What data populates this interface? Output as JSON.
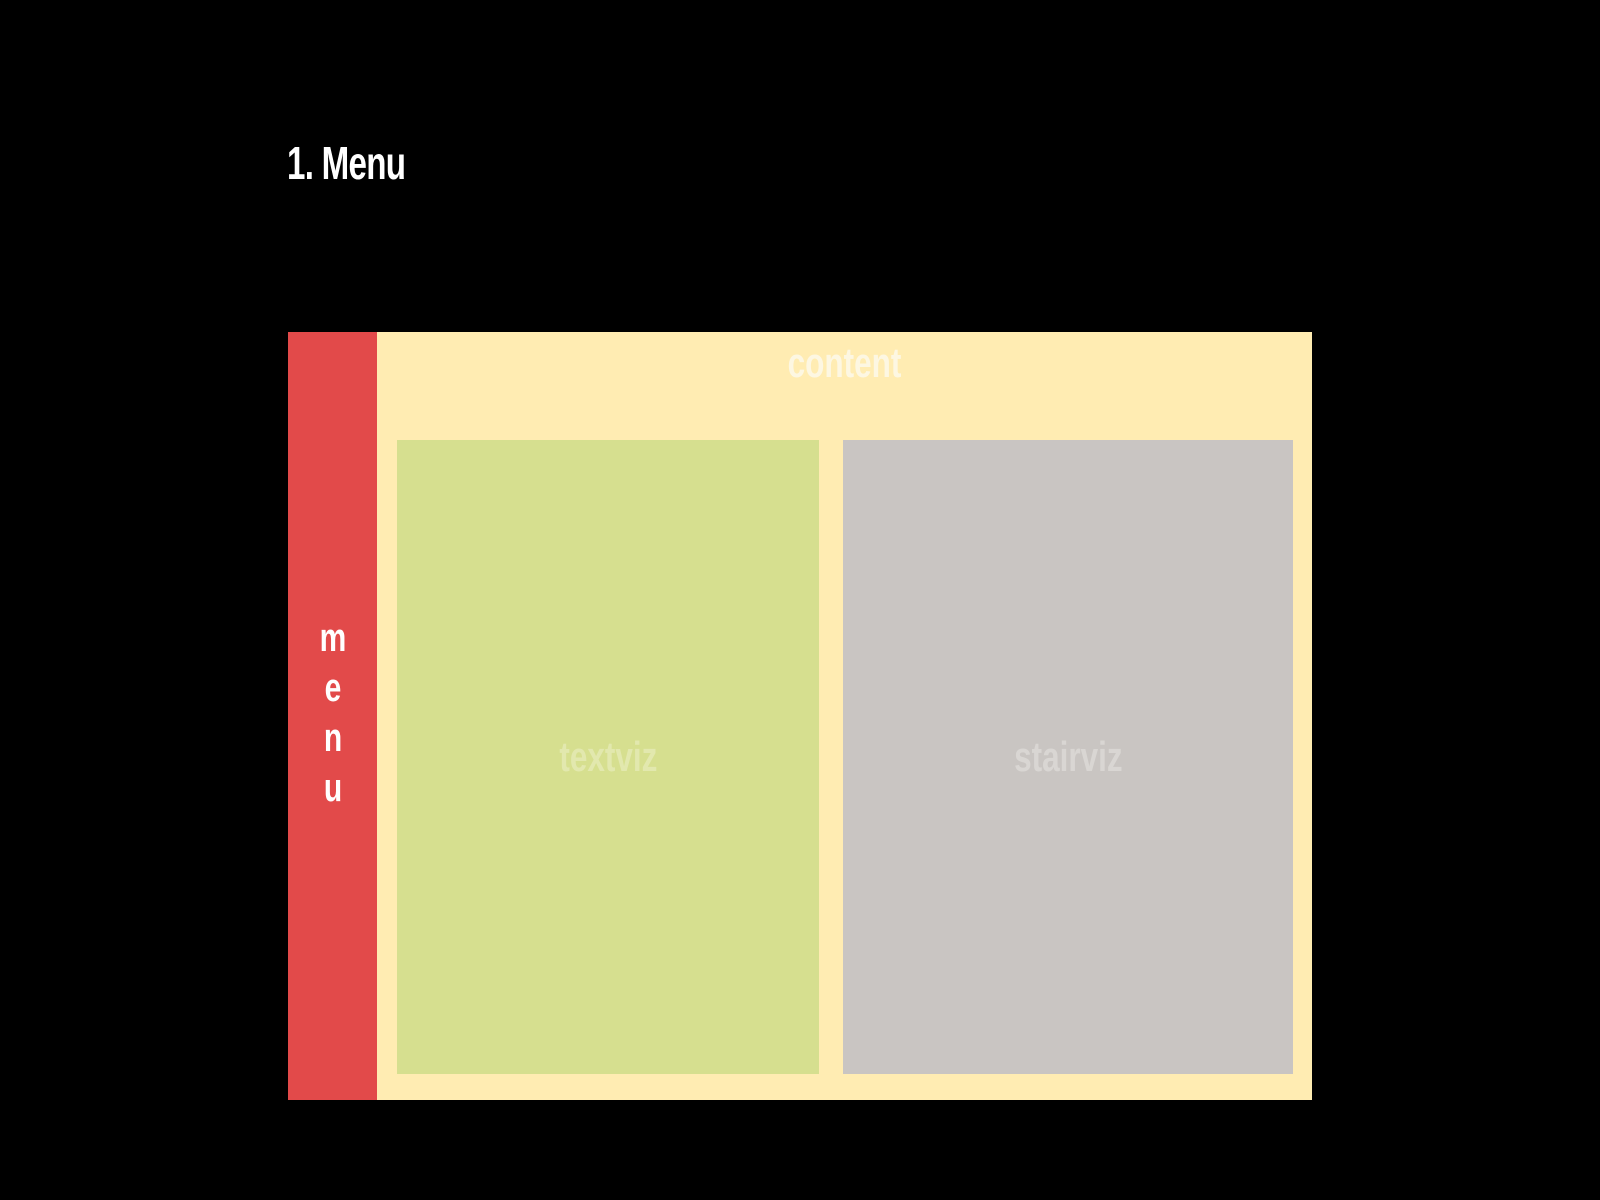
{
  "slide": {
    "title": "1. Menu"
  },
  "layout": {
    "menu": {
      "label": "menu",
      "color": "#e24a4a"
    },
    "content": {
      "label": "content",
      "color": "#ffecb2"
    },
    "panels": [
      {
        "label": "textviz",
        "color": "#d6df8f"
      },
      {
        "label": "stairviz",
        "color": "#c9c5c2"
      }
    ]
  }
}
